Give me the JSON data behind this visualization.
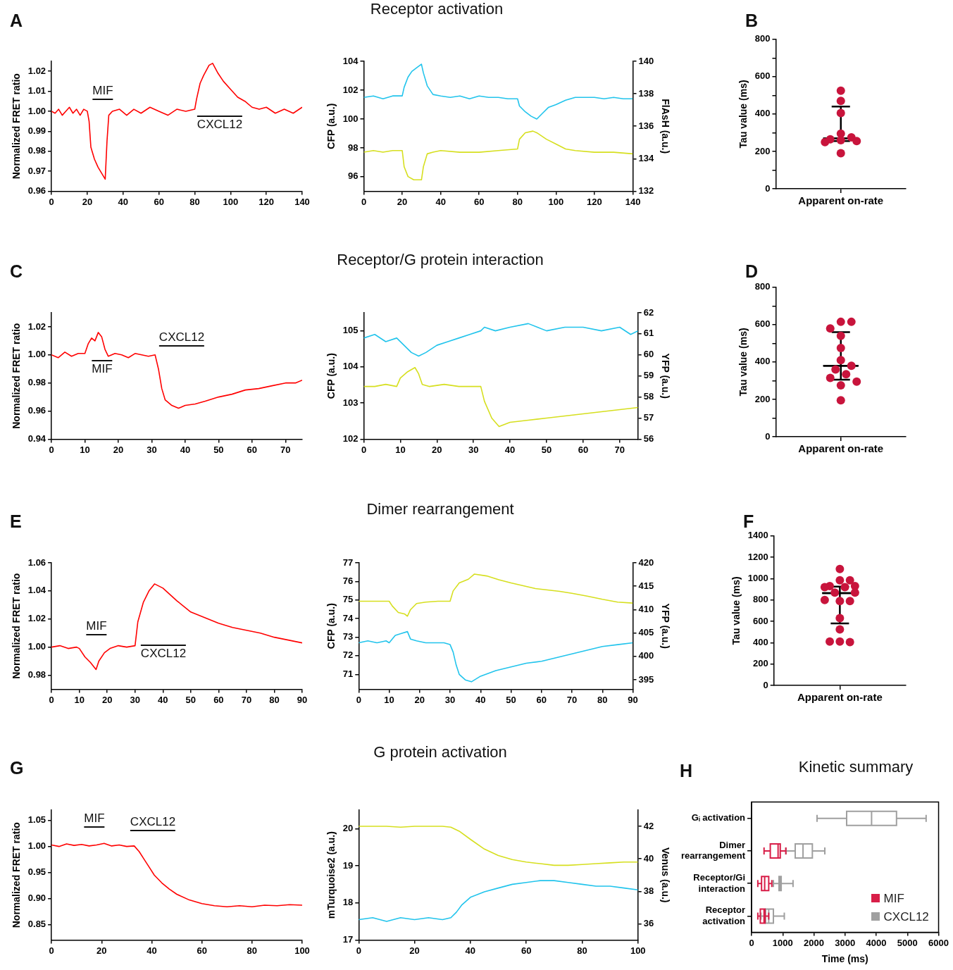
{
  "chart_data": [
    {
      "type": "line",
      "annotations": [
        "A",
        "MIF",
        "CXCL12"
      ],
      "ylabel": "Normalized FRET ratio",
      "xlim": [
        0,
        140
      ],
      "xticks": [
        0,
        20,
        40,
        60,
        80,
        100,
        120,
        140
      ],
      "ylim": [
        0.96,
        1.025
      ],
      "yticks": [
        0.96,
        0.97,
        0.98,
        0.99,
        {
          "value": 1,
          "label": "1.00"
        },
        1.01,
        1.02
      ],
      "series": [
        {
          "color": "#ff0000",
          "x": [
            0,
            2,
            4,
            6,
            8,
            10,
            12,
            14,
            16,
            18,
            20,
            21,
            22,
            24,
            26,
            28,
            30,
            31,
            32,
            34,
            38,
            42,
            46,
            50,
            55,
            60,
            65,
            70,
            75,
            80,
            81,
            83,
            85,
            88,
            90,
            93,
            96,
            100,
            104,
            108,
            112,
            116,
            120,
            125,
            130,
            135,
            140
          ],
          "values": [
            1.0,
            0.999,
            1.001,
            0.998,
            1.0,
            1.002,
            0.999,
            1.001,
            0.998,
            1.001,
            1.0,
            0.995,
            0.982,
            0.976,
            0.972,
            0.969,
            0.966,
            0.985,
            0.998,
            1.0,
            1.001,
            0.998,
            1.001,
            0.999,
            1.002,
            1.0,
            0.998,
            1.001,
            1.0,
            1.001,
            1.006,
            1.014,
            1.018,
            1.023,
            1.024,
            1.019,
            1.015,
            1.011,
            1.007,
            1.005,
            1.002,
            1.001,
            1.002,
            0.999,
            1.001,
            0.999,
            1.002
          ]
        }
      ]
    },
    {
      "type": "line",
      "title": "Receptor activation",
      "ylabel": "CFP (a.u.)",
      "y2label": "FlAsH (a.u.)",
      "xlim": [
        0,
        140
      ],
      "xticks": [
        0,
        20,
        40,
        60,
        80,
        100,
        120,
        140
      ],
      "ylim": [
        95,
        104
      ],
      "yticks": [
        96,
        98,
        100,
        102,
        104
      ],
      "y2lim": [
        132,
        140
      ],
      "y2ticks": [
        132,
        134,
        136,
        138,
        140
      ],
      "series": [
        {
          "color": "#22c4ec",
          "x": [
            0,
            5,
            10,
            15,
            20,
            21,
            23,
            25,
            28,
            30,
            31,
            33,
            36,
            40,
            45,
            50,
            55,
            60,
            65,
            70,
            75,
            80,
            81,
            84,
            87,
            90,
            93,
            96,
            100,
            105,
            110,
            115,
            120,
            125,
            130,
            135,
            140
          ],
          "values": [
            101.5,
            101.6,
            101.4,
            101.6,
            101.6,
            102.2,
            102.9,
            103.3,
            103.6,
            103.8,
            103.2,
            102.3,
            101.7,
            101.6,
            101.5,
            101.6,
            101.4,
            101.6,
            101.5,
            101.5,
            101.4,
            101.4,
            100.9,
            100.5,
            100.2,
            100.0,
            100.4,
            100.8,
            101.0,
            101.3,
            101.5,
            101.5,
            101.5,
            101.4,
            101.5,
            101.4,
            101.4
          ]
        },
        {
          "color": "#d6df1f",
          "axis": "y2",
          "x": [
            0,
            5,
            10,
            15,
            20,
            21,
            23,
            26,
            30,
            31,
            33,
            36,
            40,
            50,
            60,
            70,
            80,
            81,
            84,
            88,
            90,
            95,
            100,
            105,
            110,
            120,
            130,
            140
          ],
          "values": [
            134.4,
            134.5,
            134.4,
            134.5,
            134.5,
            133.5,
            132.9,
            132.7,
            132.7,
            133.5,
            134.3,
            134.4,
            134.5,
            134.4,
            134.4,
            134.5,
            134.6,
            135.2,
            135.6,
            135.7,
            135.6,
            135.2,
            134.9,
            134.6,
            134.5,
            134.4,
            134.4,
            134.3
          ]
        }
      ]
    },
    {
      "type": "scatter",
      "annotations": [
        "B"
      ],
      "ylabel": "Tau value (ms)",
      "categories": [
        "Apparent on-rate"
      ],
      "ylim": [
        0,
        800
      ],
      "yticks": [
        0,
        {
          "value": 100,
          "label": null
        },
        200,
        {
          "value": 300,
          "label": null
        },
        400,
        {
          "value": 500,
          "label": null
        },
        600,
        {
          "value": 700,
          "label": null
        },
        800
      ],
      "series": [
        {
          "type": "scatter",
          "color": "#c8143c",
          "marker": "circle",
          "x": [
            "Apparent on-rate",
            "Apparent on-rate",
            "Apparent on-rate",
            "Apparent on-rate",
            "Apparent on-rate",
            "Apparent on-rate",
            "Apparent on-rate",
            "Apparent on-rate",
            "Apparent on-rate",
            "Apparent on-rate"
          ],
          "values": [
            525,
            470,
            405,
            295,
            275,
            265,
            260,
            255,
            250,
            190
          ]
        },
        {
          "type": "box",
          "color": "#000000",
          "x": [
            "Apparent on-rate"
          ],
          "boxes": [
            {
              "low": 255,
              "q1": 270,
              "median": 270,
              "q3": 270,
              "high": 440
            }
          ]
        }
      ]
    },
    {
      "type": "line",
      "annotations": [
        "C",
        "MIF",
        "CXCL12"
      ],
      "ylabel": "Normalized FRET ratio",
      "xlim": [
        0,
        75
      ],
      "xticks": [
        0,
        10,
        20,
        30,
        40,
        50,
        60,
        70
      ],
      "ylim": [
        0.94,
        1.03
      ],
      "yticks": [
        0.94,
        0.96,
        0.98,
        {
          "value": 1,
          "label": "1.00"
        },
        1.02
      ],
      "series": [
        {
          "color": "#ff0000",
          "x": [
            0,
            2,
            4,
            6,
            8,
            10,
            11,
            12,
            13,
            14,
            15,
            16,
            17,
            19,
            21,
            23,
            25,
            27,
            29,
            31,
            32,
            33,
            34,
            36,
            38,
            40,
            43,
            46,
            50,
            54,
            58,
            62,
            66,
            70,
            73,
            75
          ],
          "values": [
            1.0,
            0.998,
            1.002,
            0.999,
            1.001,
            1.001,
            1.008,
            1.012,
            1.01,
            1.016,
            1.013,
            1.004,
            0.999,
            1.001,
            1.0,
            0.998,
            1.001,
            1.0,
            0.999,
            1.0,
            0.99,
            0.976,
            0.968,
            0.964,
            0.962,
            0.964,
            0.965,
            0.967,
            0.97,
            0.972,
            0.975,
            0.976,
            0.978,
            0.98,
            0.98,
            0.982
          ]
        }
      ]
    },
    {
      "type": "line",
      "title": "Receptor/G protein interaction",
      "ylabel": "CFP (a.u.)",
      "y2label": "YFP (a.u.)",
      "xlim": [
        0,
        75
      ],
      "xticks": [
        0,
        10,
        20,
        30,
        40,
        50,
        60,
        70
      ],
      "ylim": [
        102,
        105.5
      ],
      "yticks": [
        102,
        103,
        104,
        105
      ],
      "y2lim": [
        56,
        62
      ],
      "y2ticks": [
        56,
        57,
        58,
        59,
        60,
        61,
        62
      ],
      "series": [
        {
          "color": "#22c4ec",
          "x": [
            0,
            3,
            6,
            9,
            11,
            13,
            15,
            17,
            20,
            23,
            26,
            29,
            32,
            33,
            36,
            40,
            45,
            50,
            55,
            60,
            65,
            70,
            73,
            75
          ],
          "values": [
            104.8,
            104.9,
            104.7,
            104.8,
            104.6,
            104.4,
            104.3,
            104.4,
            104.6,
            104.7,
            104.8,
            104.9,
            105.0,
            105.1,
            105.0,
            105.1,
            105.2,
            105.0,
            105.1,
            105.1,
            105.0,
            105.1,
            104.9,
            105.0
          ]
        },
        {
          "color": "#d6df1f",
          "axis": "y2",
          "x": [
            0,
            3,
            6,
            9,
            10,
            12,
            14,
            15,
            16,
            18,
            22,
            26,
            30,
            32,
            33,
            35,
            37,
            40,
            45,
            50,
            55,
            60,
            65,
            70,
            75
          ],
          "values": [
            58.5,
            58.5,
            58.6,
            58.5,
            58.9,
            59.2,
            59.4,
            59.1,
            58.6,
            58.5,
            58.6,
            58.5,
            58.5,
            58.5,
            57.8,
            57.0,
            56.6,
            56.8,
            56.9,
            57.0,
            57.1,
            57.2,
            57.3,
            57.4,
            57.5
          ]
        }
      ]
    },
    {
      "type": "scatter",
      "annotations": [
        "D"
      ],
      "ylabel": "Tau value (ms)",
      "categories": [
        "Apparent on-rate"
      ],
      "ylim": [
        0,
        800
      ],
      "yticks": [
        0,
        {
          "value": 100,
          "label": null
        },
        200,
        {
          "value": 300,
          "label": null
        },
        400,
        {
          "value": 500,
          "label": null
        },
        600,
        {
          "value": 700,
          "label": null
        },
        800
      ],
      "series": [
        {
          "type": "scatter",
          "color": "#c8143c",
          "marker": "circle",
          "x": [
            "Apparent on-rate",
            "Apparent on-rate",
            "Apparent on-rate",
            "Apparent on-rate",
            "Apparent on-rate",
            "Apparent on-rate",
            "Apparent on-rate",
            "Apparent on-rate",
            "Apparent on-rate",
            "Apparent on-rate",
            "Apparent on-rate",
            "Apparent on-rate",
            "Apparent on-rate"
          ],
          "values": [
            615,
            615,
            580,
            540,
            475,
            410,
            380,
            360,
            335,
            315,
            295,
            275,
            195
          ]
        },
        {
          "type": "box",
          "color": "#000000",
          "x": [
            "Apparent on-rate"
          ],
          "boxes": [
            {
              "low": 305,
              "q1": 380,
              "median": 380,
              "q3": 380,
              "high": 560
            }
          ]
        }
      ]
    },
    {
      "type": "line",
      "annotations": [
        "E",
        "MIF",
        "CXCL12"
      ],
      "ylabel": "Normalized FRET ratio",
      "xlim": [
        0,
        90
      ],
      "xticks": [
        0,
        10,
        20,
        30,
        40,
        50,
        60,
        70,
        80,
        90
      ],
      "ylim": [
        0.97,
        1.06
      ],
      "yticks": [
        0.98,
        {
          "value": 1,
          "label": "1.00"
        },
        1.02,
        1.04,
        1.06
      ],
      "series": [
        {
          "color": "#ff0000",
          "x": [
            0,
            3,
            6,
            9,
            10,
            12,
            14,
            16,
            17,
            19,
            21,
            24,
            27,
            30,
            31,
            33,
            35,
            37,
            40,
            45,
            50,
            55,
            60,
            65,
            70,
            75,
            80,
            85,
            90
          ],
          "values": [
            1.0,
            1.001,
            0.999,
            1.0,
            0.999,
            0.993,
            0.989,
            0.984,
            0.99,
            0.996,
            0.999,
            1.001,
            1.0,
            1.001,
            1.018,
            1.032,
            1.04,
            1.045,
            1.042,
            1.033,
            1.025,
            1.021,
            1.017,
            1.014,
            1.012,
            1.01,
            1.007,
            1.005,
            1.003
          ]
        }
      ]
    },
    {
      "type": "line",
      "title": "Dimer rearrangement",
      "ylabel": "CFP (a.u.)",
      "y2label": "YFP (a.u.)",
      "xlim": [
        0,
        90
      ],
      "xticks": [
        0,
        10,
        20,
        30,
        40,
        50,
        60,
        70,
        80,
        90
      ],
      "ylim": [
        70.2,
        77
      ],
      "yticks": [
        71,
        72,
        73,
        74,
        75,
        76,
        77
      ],
      "y2lim": [
        393,
        420
      ],
      "y2ticks": [
        395,
        400,
        405,
        410,
        415,
        420
      ],
      "series": [
        {
          "color": "#22c4ec",
          "x": [
            0,
            3,
            6,
            9,
            10,
            12,
            14,
            16,
            17,
            19,
            22,
            25,
            28,
            30,
            31,
            32,
            33,
            35,
            37,
            40,
            45,
            50,
            55,
            60,
            65,
            70,
            75,
            80,
            85,
            90
          ],
          "values": [
            72.7,
            72.8,
            72.7,
            72.8,
            72.7,
            73.1,
            73.2,
            73.3,
            72.9,
            72.8,
            72.7,
            72.7,
            72.7,
            72.6,
            72.2,
            71.5,
            71.0,
            70.7,
            70.6,
            70.9,
            71.2,
            71.4,
            71.6,
            71.7,
            71.9,
            72.1,
            72.3,
            72.5,
            72.6,
            72.7
          ]
        },
        {
          "color": "#d6df1f",
          "axis": "y2",
          "x": [
            0,
            5,
            10,
            11,
            13,
            15,
            16,
            17,
            19,
            22,
            26,
            30,
            31,
            33,
            36,
            38,
            42,
            46,
            50,
            54,
            58,
            62,
            66,
            70,
            75,
            80,
            85,
            90
          ],
          "values": [
            411.8,
            411.8,
            411.8,
            410.8,
            409.4,
            409.1,
            408.6,
            410.0,
            411.3,
            411.6,
            411.8,
            411.8,
            414.0,
            415.7,
            416.5,
            417.6,
            417.2,
            416.4,
            415.7,
            415.1,
            414.5,
            414.2,
            413.9,
            413.5,
            412.9,
            412.2,
            411.6,
            411.4
          ]
        }
      ]
    },
    {
      "type": "scatter",
      "annotations": [
        "F"
      ],
      "ylabel": "Tau value (ms)",
      "categories": [
        "Apparent on-rate"
      ],
      "ylim": [
        0,
        1400
      ],
      "yticks": [
        0,
        200,
        400,
        600,
        800,
        1000,
        1200,
        1400
      ],
      "series": [
        {
          "type": "scatter",
          "color": "#c8143c",
          "marker": "circle",
          "x": [
            "Apparent on-rate",
            "Apparent on-rate",
            "Apparent on-rate",
            "Apparent on-rate",
            "Apparent on-rate",
            "Apparent on-rate",
            "Apparent on-rate",
            "Apparent on-rate",
            "Apparent on-rate",
            "Apparent on-rate",
            "Apparent on-rate",
            "Apparent on-rate",
            "Apparent on-rate",
            "Apparent on-rate",
            "Apparent on-rate",
            "Apparent on-rate",
            "Apparent on-rate"
          ],
          "values": [
            1090,
            985,
            985,
            930,
            930,
            920,
            920,
            870,
            870,
            790,
            790,
            800,
            630,
            525,
            410,
            405,
            410
          ]
        },
        {
          "type": "box",
          "color": "#000000",
          "x": [
            "Apparent on-rate"
          ],
          "boxes": [
            {
              "low": 580,
              "q1": 865,
              "median": 865,
              "q3": 865,
              "high": 925
            }
          ]
        }
      ]
    },
    {
      "type": "line",
      "annotations": [
        "G",
        "MIF",
        "CXCL12"
      ],
      "ylabel": "Normalized FRET ratio",
      "xlim": [
        0,
        100
      ],
      "xticks": [
        0,
        20,
        40,
        60,
        80,
        100
      ],
      "ylim": [
        0.82,
        1.07
      ],
      "yticks": [
        0.85,
        {
          "value": 0.9,
          "label": "0.90"
        },
        0.95,
        {
          "value": 1,
          "label": "1.00"
        },
        1.05
      ],
      "series": [
        {
          "color": "#ff0000",
          "x": [
            0,
            3,
            6,
            9,
            12,
            15,
            18,
            21,
            24,
            27,
            30,
            33,
            35,
            37,
            39,
            41,
            44,
            47,
            50,
            55,
            60,
            65,
            70,
            75,
            80,
            85,
            90,
            95,
            100
          ],
          "values": [
            1.003,
            1.0,
            1.005,
            1.002,
            1.004,
            1.001,
            1.003,
            1.006,
            1.001,
            1.003,
            1.0,
            1.001,
            0.99,
            0.975,
            0.96,
            0.945,
            0.93,
            0.918,
            0.908,
            0.897,
            0.89,
            0.886,
            0.884,
            0.886,
            0.884,
            0.887,
            0.886,
            0.888,
            0.887
          ]
        }
      ]
    },
    {
      "type": "line",
      "title": "G protein activation",
      "ylabel": "mTurquoise2 (a.u.)",
      "y2label": "Venus (a.u.)",
      "xlim": [
        0,
        100
      ],
      "xticks": [
        0,
        20,
        40,
        60,
        80,
        100
      ],
      "ylim": [
        17,
        20.5
      ],
      "yticks": [
        17,
        18,
        19,
        20
      ],
      "y2lim": [
        35,
        43
      ],
      "y2ticks": [
        36,
        38,
        40,
        42
      ],
      "series": [
        {
          "color": "#22c4ec",
          "x": [
            0,
            5,
            10,
            15,
            20,
            25,
            30,
            33,
            35,
            37,
            40,
            45,
            50,
            55,
            60,
            65,
            70,
            75,
            80,
            85,
            90,
            95,
            100
          ],
          "values": [
            17.55,
            17.6,
            17.5,
            17.6,
            17.55,
            17.6,
            17.55,
            17.6,
            17.75,
            17.95,
            18.15,
            18.3,
            18.4,
            18.5,
            18.55,
            18.6,
            18.6,
            18.55,
            18.5,
            18.45,
            18.45,
            18.4,
            18.35
          ]
        },
        {
          "color": "#d6df1f",
          "axis": "y2",
          "x": [
            0,
            5,
            10,
            15,
            20,
            25,
            30,
            33,
            36,
            40,
            45,
            50,
            55,
            60,
            65,
            70,
            75,
            80,
            85,
            90,
            95,
            100
          ],
          "values": [
            42.0,
            42.0,
            42.0,
            41.95,
            42.0,
            42.0,
            42.0,
            41.95,
            41.7,
            41.2,
            40.6,
            40.2,
            39.95,
            39.8,
            39.7,
            39.6,
            39.6,
            39.65,
            39.7,
            39.75,
            39.8,
            39.8
          ]
        }
      ]
    },
    {
      "type": "box",
      "orientation": "horizontal",
      "title": "Kinetic summary",
      "annotations": [
        "H"
      ],
      "xlabel": "Time (ms)",
      "categories": [
        "Gᵢ activation",
        "Dimer rearrangement",
        "Receptor/Gi interaction",
        "Receptor activation"
      ],
      "xlim": [
        0,
        6000
      ],
      "xticks": [
        0,
        1000,
        2000,
        3000,
        4000,
        5000,
        6000
      ],
      "legend": "bottom right",
      "series": [
        {
          "name": "MIF",
          "color": "#d81e48",
          "boxes": [
            null,
            {
              "low": 400,
              "q1": 600,
              "median": 850,
              "q3": 920,
              "high": 1100
            },
            {
              "low": 200,
              "q1": 320,
              "median": 420,
              "q3": 550,
              "high": 650
            },
            {
              "low": 200,
              "q1": 280,
              "median": 400,
              "q3": 430,
              "high": 550
            }
          ]
        },
        {
          "name": "CXCL12",
          "color": "#a0a0a0",
          "boxes": [
            {
              "low": 2100,
              "q1": 3050,
              "median": 3850,
              "q3": 4650,
              "high": 5600
            },
            {
              "low": 1100,
              "q1": 1400,
              "median": 1650,
              "q3": 1950,
              "high": 2350
            },
            {
              "low": 700,
              "q1": 880,
              "median": 920,
              "q3": 950,
              "high": 1330
            },
            {
              "low": 300,
              "q1": 450,
              "median": 550,
              "q3": 700,
              "high": 1050
            }
          ]
        }
      ]
    }
  ]
}
